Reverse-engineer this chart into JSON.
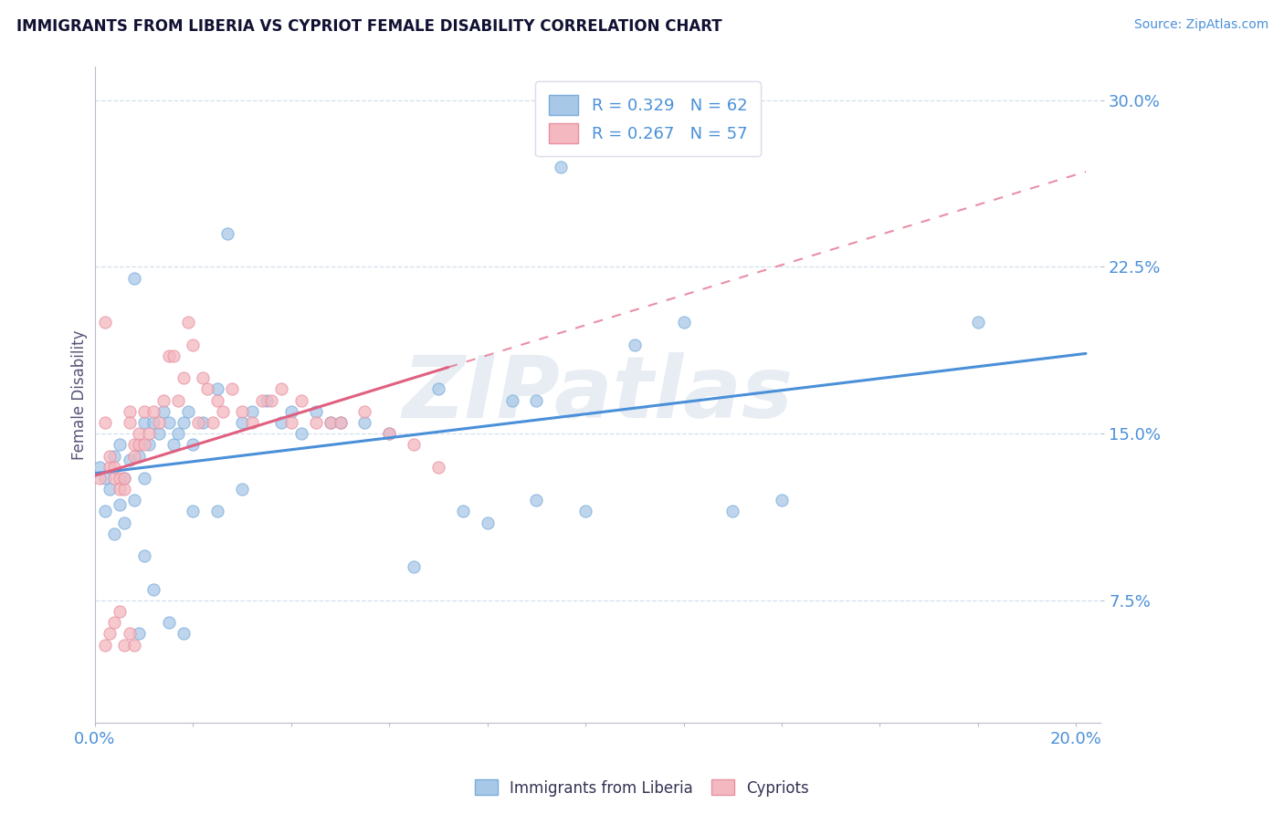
{
  "title": "IMMIGRANTS FROM LIBERIA VS CYPRIOT FEMALE DISABILITY CORRELATION CHART",
  "source_text": "Source: ZipAtlas.com",
  "ylabel": "Female Disability",
  "xlim": [
    0.0,
    0.205
  ],
  "ylim": [
    0.02,
    0.315
  ],
  "ytick_vals": [
    0.075,
    0.15,
    0.225,
    0.3
  ],
  "ytick_labels": [
    "7.5%",
    "15.0%",
    "22.5%",
    "30.0%"
  ],
  "xtick_vals": [
    0.0,
    0.02,
    0.04,
    0.06,
    0.08,
    0.1,
    0.12,
    0.14,
    0.16,
    0.18,
    0.2
  ],
  "blue_scatter_color": "#a8c8e8",
  "blue_scatter_edge": "#7aadda",
  "blue_line_color": "#4a90d9",
  "pink_scatter_color": "#f4b8c0",
  "pink_scatter_edge": "#e890a0",
  "pink_line_color": "#e06080",
  "blue_R": 0.329,
  "blue_N": 62,
  "pink_R": 0.267,
  "pink_N": 57,
  "legend_label_blue": "Immigrants from Liberia",
  "legend_label_pink": "Cypriots",
  "watermark": "ZIPatlas",
  "blue_scatter_x": [
    0.001,
    0.002,
    0.003,
    0.004,
    0.005,
    0.005,
    0.006,
    0.007,
    0.008,
    0.009,
    0.01,
    0.01,
    0.011,
    0.012,
    0.013,
    0.014,
    0.015,
    0.016,
    0.017,
    0.018,
    0.019,
    0.02,
    0.022,
    0.025,
    0.027,
    0.03,
    0.032,
    0.035,
    0.038,
    0.04,
    0.042,
    0.045,
    0.048,
    0.05,
    0.055,
    0.06,
    0.065,
    0.07,
    0.075,
    0.08,
    0.085,
    0.09,
    0.095,
    0.1,
    0.11,
    0.12,
    0.13,
    0.14,
    0.002,
    0.004,
    0.006,
    0.008,
    0.009,
    0.01,
    0.012,
    0.015,
    0.018,
    0.02,
    0.025,
    0.03,
    0.18,
    0.09
  ],
  "blue_scatter_y": [
    0.135,
    0.13,
    0.125,
    0.14,
    0.145,
    0.118,
    0.13,
    0.138,
    0.22,
    0.14,
    0.155,
    0.13,
    0.145,
    0.155,
    0.15,
    0.16,
    0.155,
    0.145,
    0.15,
    0.155,
    0.16,
    0.145,
    0.155,
    0.17,
    0.24,
    0.155,
    0.16,
    0.165,
    0.155,
    0.16,
    0.15,
    0.16,
    0.155,
    0.155,
    0.155,
    0.15,
    0.09,
    0.17,
    0.115,
    0.11,
    0.165,
    0.165,
    0.27,
    0.115,
    0.19,
    0.2,
    0.115,
    0.12,
    0.115,
    0.105,
    0.11,
    0.12,
    0.06,
    0.095,
    0.08,
    0.065,
    0.06,
    0.115,
    0.115,
    0.125,
    0.2,
    0.12
  ],
  "pink_scatter_x": [
    0.001,
    0.002,
    0.002,
    0.003,
    0.003,
    0.004,
    0.004,
    0.005,
    0.005,
    0.006,
    0.006,
    0.007,
    0.007,
    0.008,
    0.008,
    0.009,
    0.009,
    0.01,
    0.01,
    0.011,
    0.012,
    0.013,
    0.014,
    0.015,
    0.016,
    0.017,
    0.018,
    0.019,
    0.02,
    0.021,
    0.022,
    0.023,
    0.024,
    0.025,
    0.026,
    0.028,
    0.03,
    0.032,
    0.034,
    0.036,
    0.038,
    0.04,
    0.042,
    0.045,
    0.048,
    0.05,
    0.055,
    0.06,
    0.065,
    0.07,
    0.002,
    0.003,
    0.004,
    0.005,
    0.006,
    0.007,
    0.008
  ],
  "pink_scatter_y": [
    0.13,
    0.155,
    0.2,
    0.135,
    0.14,
    0.13,
    0.135,
    0.13,
    0.125,
    0.125,
    0.13,
    0.16,
    0.155,
    0.145,
    0.14,
    0.145,
    0.15,
    0.16,
    0.145,
    0.15,
    0.16,
    0.155,
    0.165,
    0.185,
    0.185,
    0.165,
    0.175,
    0.2,
    0.19,
    0.155,
    0.175,
    0.17,
    0.155,
    0.165,
    0.16,
    0.17,
    0.16,
    0.155,
    0.165,
    0.165,
    0.17,
    0.155,
    0.165,
    0.155,
    0.155,
    0.155,
    0.16,
    0.15,
    0.145,
    0.135,
    0.055,
    0.06,
    0.065,
    0.07,
    0.055,
    0.06,
    0.055
  ]
}
